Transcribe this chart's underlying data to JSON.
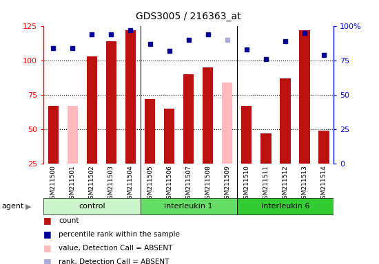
{
  "title": "GDS3005 / 216363_at",
  "samples": [
    "GSM211500",
    "GSM211501",
    "GSM211502",
    "GSM211503",
    "GSM211504",
    "GSM211505",
    "GSM211506",
    "GSM211507",
    "GSM211508",
    "GSM211509",
    "GSM211510",
    "GSM211511",
    "GSM211512",
    "GSM211513",
    "GSM211514"
  ],
  "groups": [
    {
      "name": "control",
      "color": "#ccf5cc",
      "start": 0,
      "end": 5
    },
    {
      "name": "interleukin 1",
      "color": "#66dd66",
      "start": 5,
      "end": 10
    },
    {
      "name": "interleukin 6",
      "color": "#33cc33",
      "start": 10,
      "end": 15
    }
  ],
  "count_values": [
    67,
    67,
    103,
    114,
    122,
    72,
    65,
    90,
    95,
    84,
    67,
    47,
    87,
    122,
    49
  ],
  "count_absent": [
    false,
    true,
    false,
    false,
    false,
    false,
    false,
    false,
    false,
    true,
    false,
    false,
    false,
    false,
    false
  ],
  "rank_values": [
    84,
    84,
    94,
    94,
    97,
    87,
    82,
    90,
    94,
    90,
    83,
    76,
    89,
    95,
    79
  ],
  "rank_absent": [
    false,
    false,
    false,
    false,
    false,
    false,
    false,
    false,
    false,
    true,
    false,
    false,
    false,
    false,
    false
  ],
  "left_ylim": [
    25,
    125
  ],
  "left_yticks": [
    25,
    50,
    75,
    100,
    125
  ],
  "right_ylim": [
    0,
    100
  ],
  "right_yticks": [
    0,
    25,
    50,
    75,
    100
  ],
  "right_yticklabels": [
    "0",
    "25",
    "50",
    "75",
    "100%"
  ],
  "bar_color_present": "#bb1111",
  "bar_color_absent": "#ffbbbb",
  "dot_color_present": "#000099",
  "dot_color_absent": "#aaaadd",
  "plot_bg": "#ffffff",
  "xtick_bg": "#d8d8d8",
  "agent_label": "agent"
}
